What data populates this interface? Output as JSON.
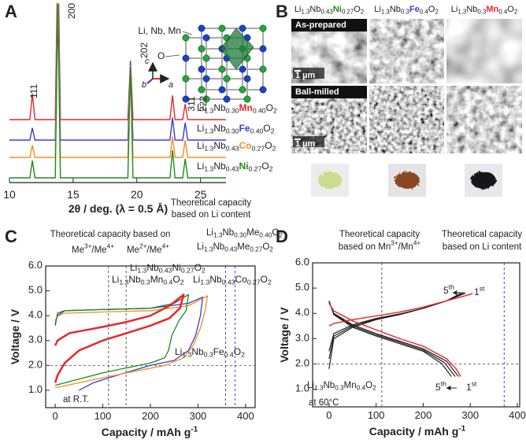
{
  "chart_data": [
    {
      "type": "waterfall",
      "label": "A",
      "xlabel": "2θ / deg. (λ = 0.5 Å)",
      "xlim": [
        10,
        27
      ],
      "xticks": [
        10,
        15,
        20,
        25
      ],
      "x": [
        10,
        11.6,
        11.8,
        12.0,
        13.6,
        13.8,
        14.0,
        19.3,
        19.5,
        19.7,
        22.6,
        22.8,
        23.0,
        23.6,
        23.8,
        24.0,
        27
      ],
      "series": [
        {
          "name": "Li1.3Nb0.30Mn0.40O2",
          "color": "#e8262b",
          "values": [
            0,
            0,
            15,
            0,
            0,
            100,
            0,
            0,
            34,
            0,
            0,
            14,
            0,
            0,
            9,
            0,
            0
          ]
        },
        {
          "name": "Li1.3Nb0.30Fe0.40O2",
          "color": "#3a3ad8",
          "values": [
            0,
            0,
            7,
            0,
            0,
            100,
            0,
            0,
            45,
            0,
            0,
            13,
            0,
            0,
            10,
            0,
            0
          ]
        },
        {
          "name": "Li1.3Nb0.43Co0.27O2",
          "color": "#f0901e",
          "values": [
            0,
            0,
            7,
            0,
            0,
            100,
            0,
            0,
            53,
            0,
            0,
            12,
            0,
            0,
            10,
            0,
            0
          ]
        },
        {
          "name": "Li1.3Nb0.43Ni0.27O2",
          "color": "#1f8a1f",
          "values": [
            0,
            0,
            10,
            0,
            0,
            100,
            0,
            0,
            64,
            0,
            0,
            16,
            0,
            0,
            11,
            0,
            0
          ]
        }
      ],
      "peak_labels": [
        "111",
        "200",
        "202",
        "311",
        "222"
      ],
      "structure_labels": {
        "cations": "Li, Nb, Mn",
        "anion": "O",
        "axes": [
          "c",
          "b",
          "a"
        ]
      }
    },
    {
      "type": "line",
      "label": "C",
      "xlabel": "Capacity / mAh g-1",
      "ylabel": "Voltage / V",
      "xlim": [
        -20,
        420
      ],
      "xticks": [
        0,
        100,
        200,
        300,
        400
      ],
      "ylim": [
        0.3,
        6.0
      ],
      "yticks": [
        {
          "value": 1,
          "label": "1.0"
        },
        {
          "value": 2,
          "label": "2.0"
        },
        {
          "value": 3,
          "label": "3.0"
        },
        {
          "value": 4,
          "label": "4.0"
        },
        {
          "value": 5,
          "label": "5.0"
        },
        {
          "value": 6,
          "label": "6.0"
        }
      ],
      "vlines": [
        {
          "x": 112,
          "color": "#444"
        },
        {
          "x": 149,
          "color": "#444"
        },
        {
          "x": 358,
          "color": "#2a2ad0"
        },
        {
          "x": 378,
          "color": "#2a2ad0"
        }
      ],
      "hlines": [
        2.0
      ],
      "series": [
        {
          "name": "Li1.3Nb0.3Mn0.4O2",
          "color": "#e8262b",
          "linewidth": 2.5,
          "x": [
            0,
            5,
            30,
            100,
            150,
            200,
            240,
            270,
            262,
            240,
            200,
            150,
            100,
            50,
            20,
            5,
            0
          ],
          "values": [
            2.8,
            3.0,
            3.3,
            3.55,
            3.75,
            4.0,
            4.4,
            4.85,
            4.3,
            3.9,
            3.6,
            3.3,
            3.0,
            2.6,
            2.1,
            1.6,
            1.3
          ]
        },
        {
          "name": "Li1.3Nb0.43Ni0.27O2",
          "color": "#1f8a1f",
          "linewidth": 1.3,
          "x": [
            0,
            5,
            20,
            100,
            200,
            250,
            280,
            275,
            260,
            245,
            238,
            230,
            200,
            100,
            0
          ],
          "values": [
            3.7,
            4.0,
            4.2,
            4.25,
            4.3,
            4.5,
            4.85,
            4.2,
            3.8,
            3.2,
            2.6,
            2.3,
            2.1,
            1.7,
            1.2
          ]
        },
        {
          "name": "Li1.3Nb0.43Co0.27O2",
          "color": "#f0901e",
          "linewidth": 1.3,
          "x": [
            0,
            5,
            20,
            100,
            200,
            280,
            320,
            315,
            305,
            290,
            270,
            230,
            150,
            50,
            0
          ],
          "values": [
            3.8,
            4.0,
            4.1,
            4.15,
            4.2,
            4.4,
            4.8,
            4.2,
            3.5,
            2.8,
            2.3,
            2.0,
            1.7,
            1.3,
            1.1
          ]
        },
        {
          "name": "Li1.3Nb0.3Fe0.4O2",
          "color": "#3a3ad8",
          "linewidth": 1.3,
          "x": [
            0,
            5,
            20,
            100,
            200,
            280,
            310,
            305,
            295,
            280,
            250,
            200,
            130,
            80,
            50
          ],
          "values": [
            3.6,
            4.1,
            4.2,
            4.25,
            4.3,
            4.5,
            4.75,
            4.0,
            3.2,
            2.6,
            2.2,
            2.0,
            1.6,
            1.3,
            1.0
          ]
        }
      ],
      "annotations": [
        {
          "text": "Theoretical capacity based on",
          "color": "#222"
        },
        {
          "text": "Me3+/Me4+",
          "color": "#222"
        },
        {
          "text": "Me2+/Me4+",
          "color": "#222"
        },
        {
          "text": "Theoretical capacity",
          "color": "#2a2ad0"
        },
        {
          "text": "based on Li content",
          "color": "#2a2ad0"
        },
        {
          "text": "Li1.3Nb0.30Me0.40O2",
          "color": "#2a2ad0"
        },
        {
          "text": "Li1.3Nb0.43Me0.27O2",
          "color": "#2a2ad0"
        },
        {
          "text": "at R.T.",
          "color": "#222"
        }
      ]
    },
    {
      "type": "line",
      "label": "D",
      "xlabel": "Capacity / mAh g-1",
      "ylabel": "Voltage / V",
      "xlim": [
        -35,
        405
      ],
      "xticks": [
        0,
        100,
        200,
        300,
        400
      ],
      "ylim": [
        0.3,
        6.0
      ],
      "yticks": [
        {
          "value": 1,
          "label": "1.0"
        },
        {
          "value": 2,
          "label": "2.0"
        },
        {
          "value": 3,
          "label": "3.0"
        },
        {
          "value": 4,
          "label": "4.0"
        },
        {
          "value": 5,
          "label": "5.0"
        },
        {
          "value": 6,
          "label": "6.0"
        }
      ],
      "vlines": [
        {
          "x": 112,
          "color": "#444"
        },
        {
          "x": 372,
          "color": "#2a2ad0"
        }
      ],
      "hlines": [
        2.0
      ],
      "series": [
        {
          "name": "1st",
          "color": "#e8262b",
          "linewidth": 1.4,
          "x": [
            0,
            10,
            50,
            100,
            150,
            200,
            250,
            300,
            305,
            null,
            0,
            10,
            50,
            100,
            150,
            200,
            250,
            270,
            280
          ],
          "values": [
            3.5,
            3.6,
            3.75,
            3.9,
            4.05,
            4.25,
            4.5,
            4.75,
            4.8,
            null,
            4.4,
            4.1,
            3.7,
            3.35,
            3.0,
            2.7,
            2.2,
            1.8,
            1.5
          ]
        },
        {
          "color": "#222",
          "linewidth": 1.2,
          "x": [
            0,
            10,
            50,
            100,
            150,
            200,
            250,
            290,
            null,
            0,
            10,
            50,
            100,
            150,
            200,
            250,
            275
          ],
          "values": [
            2.5,
            3.2,
            3.55,
            3.8,
            3.98,
            4.2,
            4.5,
            4.8,
            null,
            4.45,
            4.0,
            3.55,
            3.2,
            2.9,
            2.6,
            2.1,
            1.5
          ]
        },
        {
          "color": "#222",
          "linewidth": 1.2,
          "x": [
            0,
            10,
            50,
            100,
            150,
            200,
            250,
            285,
            null,
            0,
            10,
            50,
            100,
            150,
            200,
            245,
            268
          ],
          "values": [
            2.2,
            3.1,
            3.5,
            3.78,
            3.96,
            4.2,
            4.5,
            4.8,
            null,
            4.48,
            3.98,
            3.5,
            3.15,
            2.85,
            2.55,
            2.05,
            1.5
          ]
        },
        {
          "name": "5th",
          "color": "#222",
          "linewidth": 1.2,
          "x": [
            0,
            10,
            50,
            100,
            150,
            200,
            250,
            280,
            null,
            0,
            10,
            50,
            100,
            150,
            200,
            240,
            260
          ],
          "values": [
            1.8,
            3.0,
            3.45,
            3.75,
            3.95,
            4.2,
            4.5,
            4.8,
            null,
            4.5,
            3.95,
            3.45,
            3.1,
            2.8,
            2.5,
            2.0,
            1.5
          ]
        }
      ],
      "annotations": [
        {
          "text": "Theoretical capacity",
          "color": "#222"
        },
        {
          "text": "based on Mn3+/Mn4+",
          "color": "#222"
        },
        {
          "text": "Theoretical capacity",
          "color": "#2a2ad0"
        },
        {
          "text": "based on Li content",
          "color": "#2a2ad0"
        },
        {
          "text": "Li1.3Nb0.3Mn0.4O2",
          "color": "#222"
        },
        {
          "text": "at 60°C",
          "color": "#222"
        }
      ]
    }
  ],
  "panel_b": {
    "label": "B",
    "columns": [
      {
        "name": "Li1.3Nb0.43Ni0.27O2",
        "color": "#1f8a1f"
      },
      {
        "name": "Li1.3Nb0.3Fe0.4O2",
        "color": "#3a3ad8"
      },
      {
        "name": "Li1.3Nb0.3Mn0.4O2",
        "color": "#e8262b"
      }
    ],
    "rows": [
      "As-prepared",
      "Ball-milled"
    ],
    "scale_bar": "1 µm"
  }
}
